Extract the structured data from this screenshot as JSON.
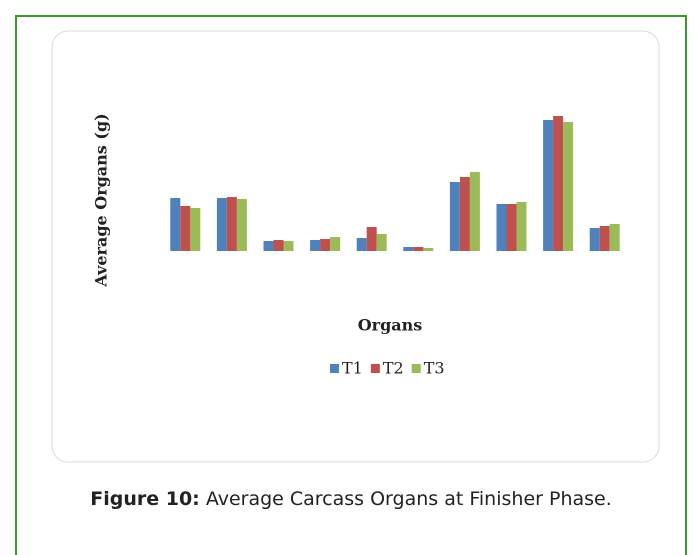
{
  "chart_data": {
    "type": "bar",
    "y_label": "Average Organs (g)",
    "x_label": "Organs",
    "categories": [
      null,
      null,
      null,
      null,
      null,
      null,
      null,
      null,
      null,
      null
    ],
    "series": [
      {
        "name": "T1",
        "color": "#4f81bd",
        "values": [
          53,
          53,
          10,
          11,
          13,
          4,
          69,
          47,
          131,
          23
        ]
      },
      {
        "name": "T2",
        "color": "#c0504d",
        "values": [
          45,
          54,
          11,
          12,
          24,
          4,
          74,
          47,
          135,
          25
        ]
      },
      {
        "name": "T3",
        "color": "#9bbb59",
        "values": [
          43,
          52,
          10,
          14,
          17,
          3,
          79,
          49,
          129,
          27
        ]
      }
    ],
    "ylim": [
      0,
      140
    ],
    "legend": "bottom"
  },
  "caption": {
    "label": "Figure 10:",
    "text": "Average Carcass Organs at Finisher Phase."
  }
}
